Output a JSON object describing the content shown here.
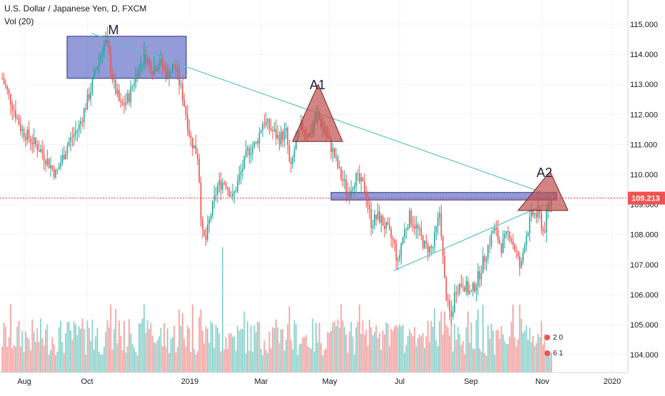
{
  "header": {
    "symbol_line": "U.S. Dollar / Japanese Yen, D, FXCM",
    "volume_line": "Vol (20)"
  },
  "colors": {
    "up": "#26a69a",
    "down": "#ef5350",
    "vol_up": "#8fd3cd",
    "vol_down": "#f4a6a5",
    "trend": "#5fc4bb",
    "zone_fill": "#6a74c9",
    "triangle_fill": "#c0504d",
    "price_line": "#e53935",
    "label_bg": "#ef5350",
    "axis_text": "#131722"
  },
  "chart_data": {
    "type": "candlestick",
    "title": "U.S. Dollar / Japanese Yen, D, FXCM",
    "timeframe": "D",
    "volume_indicator": "Vol (20)",
    "x_ticks": [
      "Aug",
      "Oct",
      "2019",
      "Mar",
      "May",
      "Jul",
      "Sep",
      "Nov",
      "2020"
    ],
    "y_ticks": [
      "115.000",
      "114.000",
      "113.000",
      "112.000",
      "111.000",
      "110.000",
      "109.000",
      "108.000",
      "107.000",
      "106.000",
      "105.000",
      "104.000"
    ],
    "ylim": [
      103.4,
      115.6
    ],
    "last_price": "109.213",
    "price_path": [
      [
        0,
        113.2
      ],
      [
        5,
        111.5
      ],
      [
        10,
        110.8
      ],
      [
        14,
        110.0
      ],
      [
        17,
        111.0
      ],
      [
        20,
        111.6
      ],
      [
        23,
        112.8
      ],
      [
        25,
        113.8
      ],
      [
        27,
        114.5
      ],
      [
        29,
        113.0
      ],
      [
        31,
        112.2
      ],
      [
        33,
        112.6
      ],
      [
        35,
        113.4
      ],
      [
        37,
        114.0
      ],
      [
        39,
        113.5
      ],
      [
        41,
        113.8
      ],
      [
        43,
        113.3
      ],
      [
        45,
        113.6
      ],
      [
        47,
        112.6
      ],
      [
        49,
        111.2
      ],
      [
        51,
        110.6
      ],
      [
        52,
        108.0
      ],
      [
        53,
        107.8
      ],
      [
        54,
        108.5
      ],
      [
        56,
        109.6
      ],
      [
        58,
        109.8
      ],
      [
        60,
        109.2
      ],
      [
        62,
        110.0
      ],
      [
        64,
        110.8
      ],
      [
        66,
        111.0
      ],
      [
        68,
        111.8
      ],
      [
        70,
        111.5
      ],
      [
        72,
        111.2
      ],
      [
        74,
        111.4
      ],
      [
        75,
        110.0
      ],
      [
        76,
        110.8
      ],
      [
        78,
        111.6
      ],
      [
        80,
        111.3
      ],
      [
        82,
        112.0
      ],
      [
        84,
        111.4
      ],
      [
        86,
        110.8
      ],
      [
        88,
        110.0
      ],
      [
        90,
        109.4
      ],
      [
        92,
        109.9
      ],
      [
        94,
        109.6
      ],
      [
        95,
        109.2
      ],
      [
        96,
        108.4
      ],
      [
        98,
        108.6
      ],
      [
        100,
        108.2
      ],
      [
        102,
        107.7
      ],
      [
        103,
        107.0
      ],
      [
        104,
        107.8
      ],
      [
        106,
        108.6
      ],
      [
        108,
        108.2
      ],
      [
        110,
        107.6
      ],
      [
        112,
        107.5
      ],
      [
        114,
        108.8
      ],
      [
        115,
        106.6
      ],
      [
        116,
        105.6
      ],
      [
        117,
        105.2
      ],
      [
        118,
        106.2
      ],
      [
        120,
        106.4
      ],
      [
        122,
        106.0
      ],
      [
        124,
        106.6
      ],
      [
        126,
        107.4
      ],
      [
        128,
        108.2
      ],
      [
        130,
        107.6
      ],
      [
        132,
        108.1
      ],
      [
        134,
        107.3
      ],
      [
        135,
        106.8
      ],
      [
        136,
        107.8
      ],
      [
        138,
        108.7
      ],
      [
        140,
        108.6
      ],
      [
        141,
        108.0
      ],
      [
        142,
        108.9
      ],
      [
        143,
        109.1
      ]
    ],
    "zones": [
      {
        "name": "M",
        "low": 113.2,
        "high": 114.6
      },
      {
        "name": "resistance",
        "low": 109.15,
        "high": 109.4
      }
    ],
    "triangles": [
      {
        "name": "A1",
        "apex": 113.0,
        "base": 111.1
      },
      {
        "name": "A2",
        "apex": 110.1,
        "base": 108.8
      }
    ],
    "trendlines": [
      {
        "name": "descending",
        "from": 114.7,
        "to": 109.3
      },
      {
        "name": "ascending",
        "from": 106.8,
        "to": 109.0
      }
    ],
    "annotations": [
      "M",
      "A1",
      "A2"
    ],
    "volume_badge": [
      "2 0",
      "6 1"
    ]
  }
}
